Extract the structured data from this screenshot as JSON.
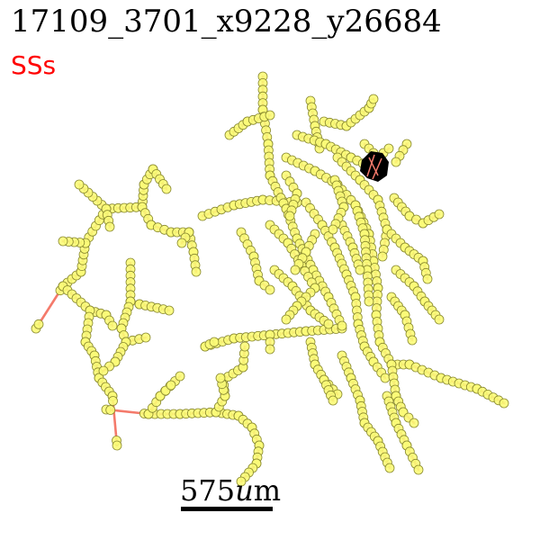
{
  "title": "17109_3701_x9228_y26684",
  "subtitle": "SSs",
  "scale_bar": {
    "label": "575",
    "unit_italic": "u",
    "unit_tail": "m"
  },
  "colors": {
    "edge": "#f47a6b",
    "node_fill": "#fbfb78",
    "node_stroke": "#8a8a30",
    "soma": "#000000",
    "subtitle": "#ff0000"
  }
}
